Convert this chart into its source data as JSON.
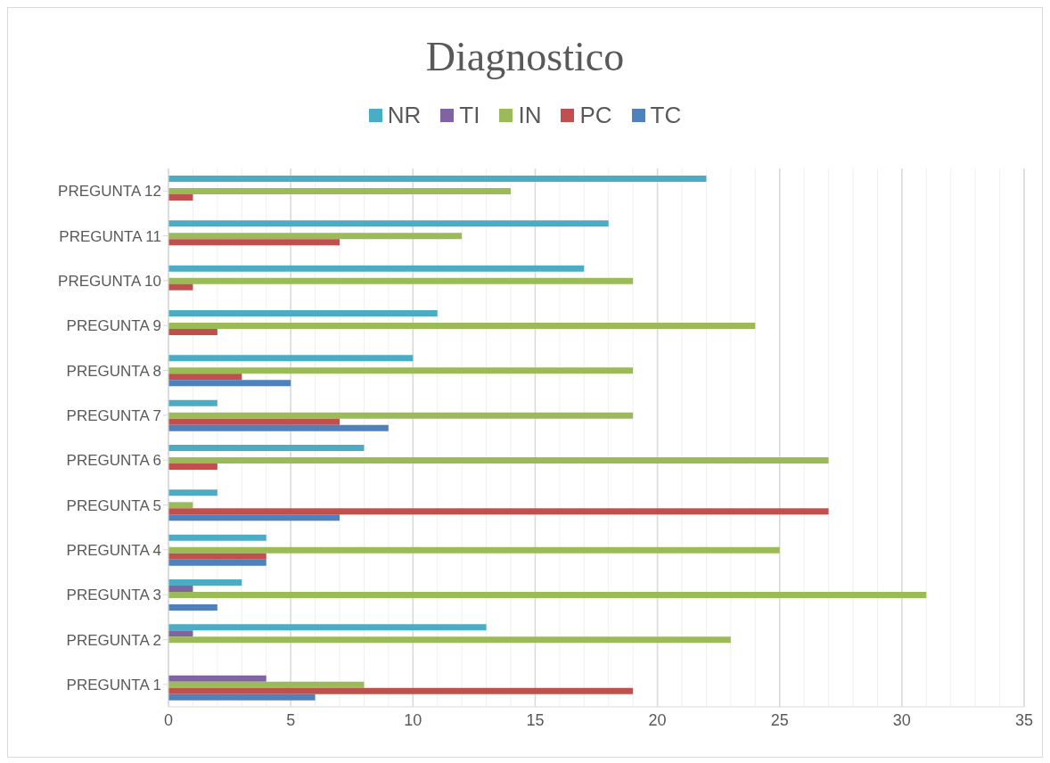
{
  "chart_data": {
    "type": "bar",
    "orientation": "horizontal",
    "title": "Diagnostico",
    "categories": [
      "PREGUNTA 12",
      "PREGUNTA 11",
      "PREGUNTA 10",
      "PREGUNTA 9",
      "PREGUNTA 8",
      "PREGUNTA 7",
      "PREGUNTA 6",
      "PREGUNTA 5",
      "PREGUNTA 4",
      "PREGUNTA 3",
      "PREGUNTA 2",
      "PREGUNTA 1"
    ],
    "series": [
      {
        "name": "NR",
        "color": "#4bacc6",
        "values": [
          22,
          18,
          17,
          11,
          10,
          2,
          8,
          2,
          4,
          3,
          13,
          null
        ]
      },
      {
        "name": "TI",
        "color": "#8064a2",
        "values": [
          null,
          null,
          null,
          null,
          null,
          null,
          null,
          null,
          null,
          1,
          1,
          4
        ]
      },
      {
        "name": "IN",
        "color": "#9bbb59",
        "values": [
          14,
          12,
          19,
          24,
          19,
          19,
          27,
          1,
          25,
          31,
          23,
          8
        ]
      },
      {
        "name": "PC",
        "color": "#c0504d",
        "values": [
          1,
          7,
          1,
          2,
          3,
          7,
          2,
          27,
          4,
          null,
          null,
          19
        ]
      },
      {
        "name": "TC",
        "color": "#4f81bd",
        "values": [
          null,
          null,
          null,
          null,
          5,
          9,
          null,
          7,
          4,
          2,
          null,
          6
        ]
      }
    ],
    "xlim": [
      0,
      35
    ],
    "xticks": [
      0,
      5,
      10,
      15,
      20,
      25,
      30,
      35
    ],
    "grid": "x",
    "legend": "top"
  }
}
